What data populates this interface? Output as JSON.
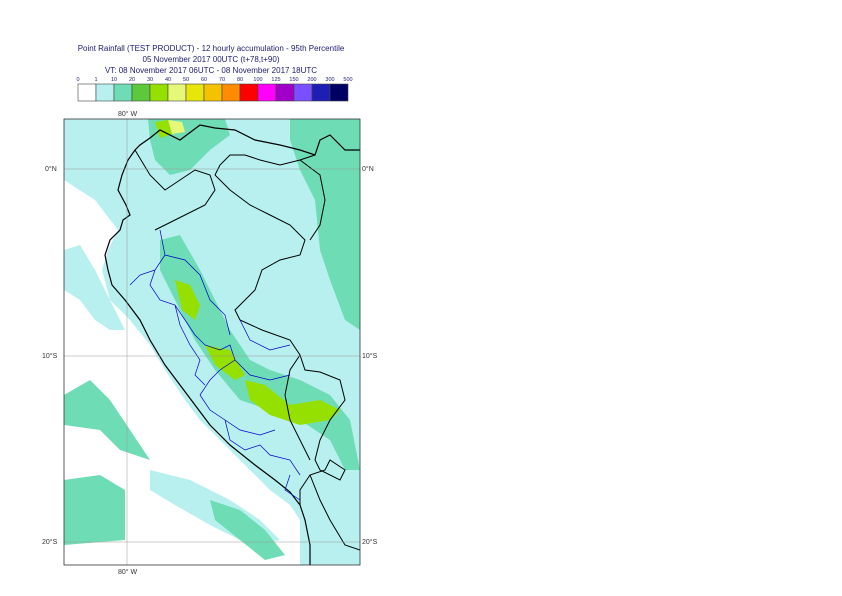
{
  "header": {
    "title": "Point Rainfall (TEST PRODUCT) - 12 hourly accumulation - 95th Percentile",
    "base": "05 November 2017 00UTC (t+78,t+90)",
    "valid": "VT: 08 November 2017 06UTC - 08 November 2017 18UTC"
  },
  "legend": {
    "thresholds": [
      "0",
      "1",
      "10",
      "20",
      "30",
      "40",
      "50",
      "60",
      "70",
      "80",
      "100",
      "125",
      "150",
      "200",
      "300",
      "500"
    ],
    "colors": [
      "#ffffff",
      "#b8f0f0",
      "#6edcb4",
      "#5cc83c",
      "#96e000",
      "#e6f878",
      "#e6e60a",
      "#f5c200",
      "#ff8c00",
      "#ff0000",
      "#ff00ff",
      "#a000c8",
      "#7850ff",
      "#1e1eb4",
      "#000064"
    ]
  },
  "map": {
    "lon_labels": {
      "top": "80° W",
      "bottom": "80° W"
    },
    "lat_labels": [
      "0°N",
      "10°S",
      "20°S"
    ],
    "colors": {
      "sea": "#b8f0f0",
      "land": "#ffffff",
      "heavy": "#6edcb4",
      "green": "#96e000",
      "yellow": "#e6f878",
      "border": "#000000",
      "internal": "#0000c8"
    }
  }
}
